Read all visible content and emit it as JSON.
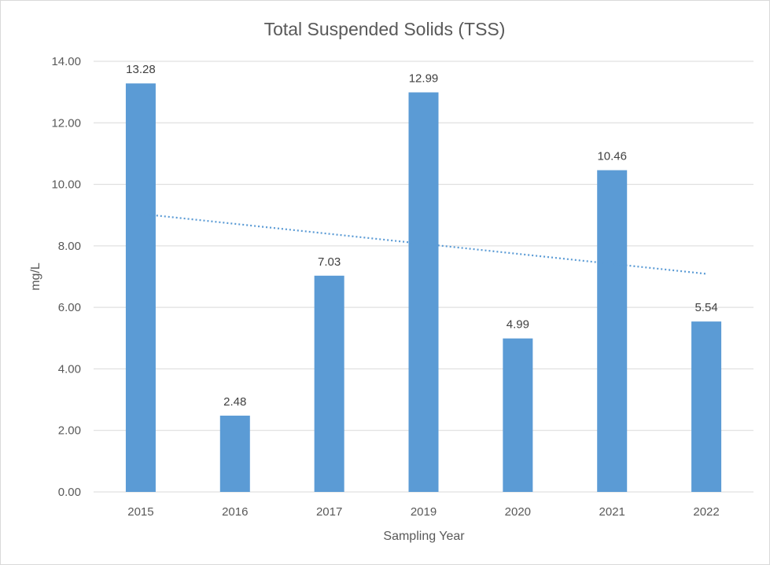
{
  "chart_data": {
    "type": "bar",
    "title": "Total Suspended Solids (TSS)",
    "xlabel": "Sampling Year",
    "ylabel": "mg/L",
    "categories": [
      "2015",
      "2016",
      "2017",
      "2019",
      "2020",
      "2021",
      "2022"
    ],
    "values": [
      13.28,
      2.48,
      7.03,
      12.99,
      4.99,
      10.46,
      5.54
    ],
    "data_labels": [
      "13.28",
      "2.48",
      "7.03",
      "12.99",
      "4.99",
      "10.46",
      "5.54"
    ],
    "ylim": [
      0,
      14
    ],
    "y_ticks": [
      0,
      2,
      4,
      6,
      8,
      10,
      12,
      14
    ],
    "y_tick_labels": [
      "0.00",
      "2.00",
      "4.00",
      "6.00",
      "8.00",
      "10.00",
      "12.00",
      "14.00"
    ],
    "trendline": {
      "type": "linear",
      "start": 9.04,
      "end": 7.09
    },
    "grid": true,
    "legend": "none",
    "colors": {
      "bar": "#5b9bd5",
      "trendline": "#5b9bd5",
      "grid": "#d9d9d9"
    }
  }
}
